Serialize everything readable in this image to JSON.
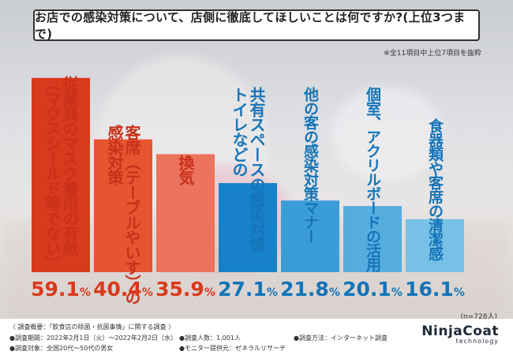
{
  "title": "お店での感染対策について、店側に徹底してほしいことは何ですか?(上位3つまで)",
  "excerpt_note": "※全11項目中上位7項目を抜粋",
  "n_note": "(n=728人)",
  "chart_data": {
    "type": "bar",
    "title": "お店での感染対策について、店側に徹底してほしいことは何ですか?(上位3つまで)",
    "unit": "%",
    "categories": [
      "従業員のマスク着用の有無（マウスシールド等でない）",
      "客席（テーブルやいす）の感染対策",
      "換気",
      "トイレなどの共有スペースの感染対策",
      "他の客の感染対策マナー",
      "個室、アクリルボードの活用",
      "食器類や客席の清潔感"
    ],
    "labels": [
      "従業員のマスク着用の有無\n（マウスシールド等でない）",
      "客席（テーブルやいす）の\n感染対策",
      "換気",
      "共有スペースの感染対策\nトイレなどの",
      "他の客の感染対策マナー",
      "個室、アクリルボードの活用",
      "食器類や客席の清潔感"
    ],
    "values": [
      59.1,
      40.4,
      35.9,
      27.1,
      21.8,
      20.1,
      16.1
    ],
    "value_texts": [
      {
        "num": "59.1",
        "unit": "%"
      },
      {
        "num": "40.4",
        "unit": "%"
      },
      {
        "num": "35.9",
        "unit": "%"
      },
      {
        "num": "27.1",
        "unit": "%"
      },
      {
        "num": "21.8",
        "unit": "%"
      },
      {
        "num": "20.1",
        "unit": "%"
      },
      {
        "num": "16.1",
        "unit": "%"
      }
    ],
    "colors": [
      "#d9391c",
      "#e55530",
      "#ec735d",
      "#1782c9",
      "#3b9dd8",
      "#55acde",
      "#78c1e6"
    ],
    "label_colors": [
      "#ffffff",
      "#ffffff",
      "#ffffff",
      "#ffffff",
      "#ffffff",
      "#ffffff",
      "#ffffff"
    ],
    "label_dark_colors": [
      "#c12a10",
      "#c12a10",
      "#c12a10",
      "#0f6ea9",
      "#1d80bf",
      "#2b8cc9",
      "#3996cc"
    ],
    "value_colors": [
      "#d9391c",
      "#d9391c",
      "#d9391c",
      "#1274b8",
      "#1274b8",
      "#1274b8",
      "#1274b8"
    ],
    "ylim": [
      0,
      60
    ],
    "grid": false,
    "legend": "none"
  },
  "footer": {
    "survey_title": "〈 調査概要：「飲食店の除菌・抗菌事情」に関する調査 〉",
    "period": "●調査期間：2022年2月1日（火）〜2022年2月2日（水）",
    "respondents": "●調査人数：1,001人",
    "method": "●調査方法：インターネット調査",
    "target": "●調査対象：全国20代〜50代の男女",
    "provider": "●モニター提供元：ゼネラルリサーチ"
  },
  "logo": {
    "main": "NinjaCoat",
    "sub": "technology"
  }
}
